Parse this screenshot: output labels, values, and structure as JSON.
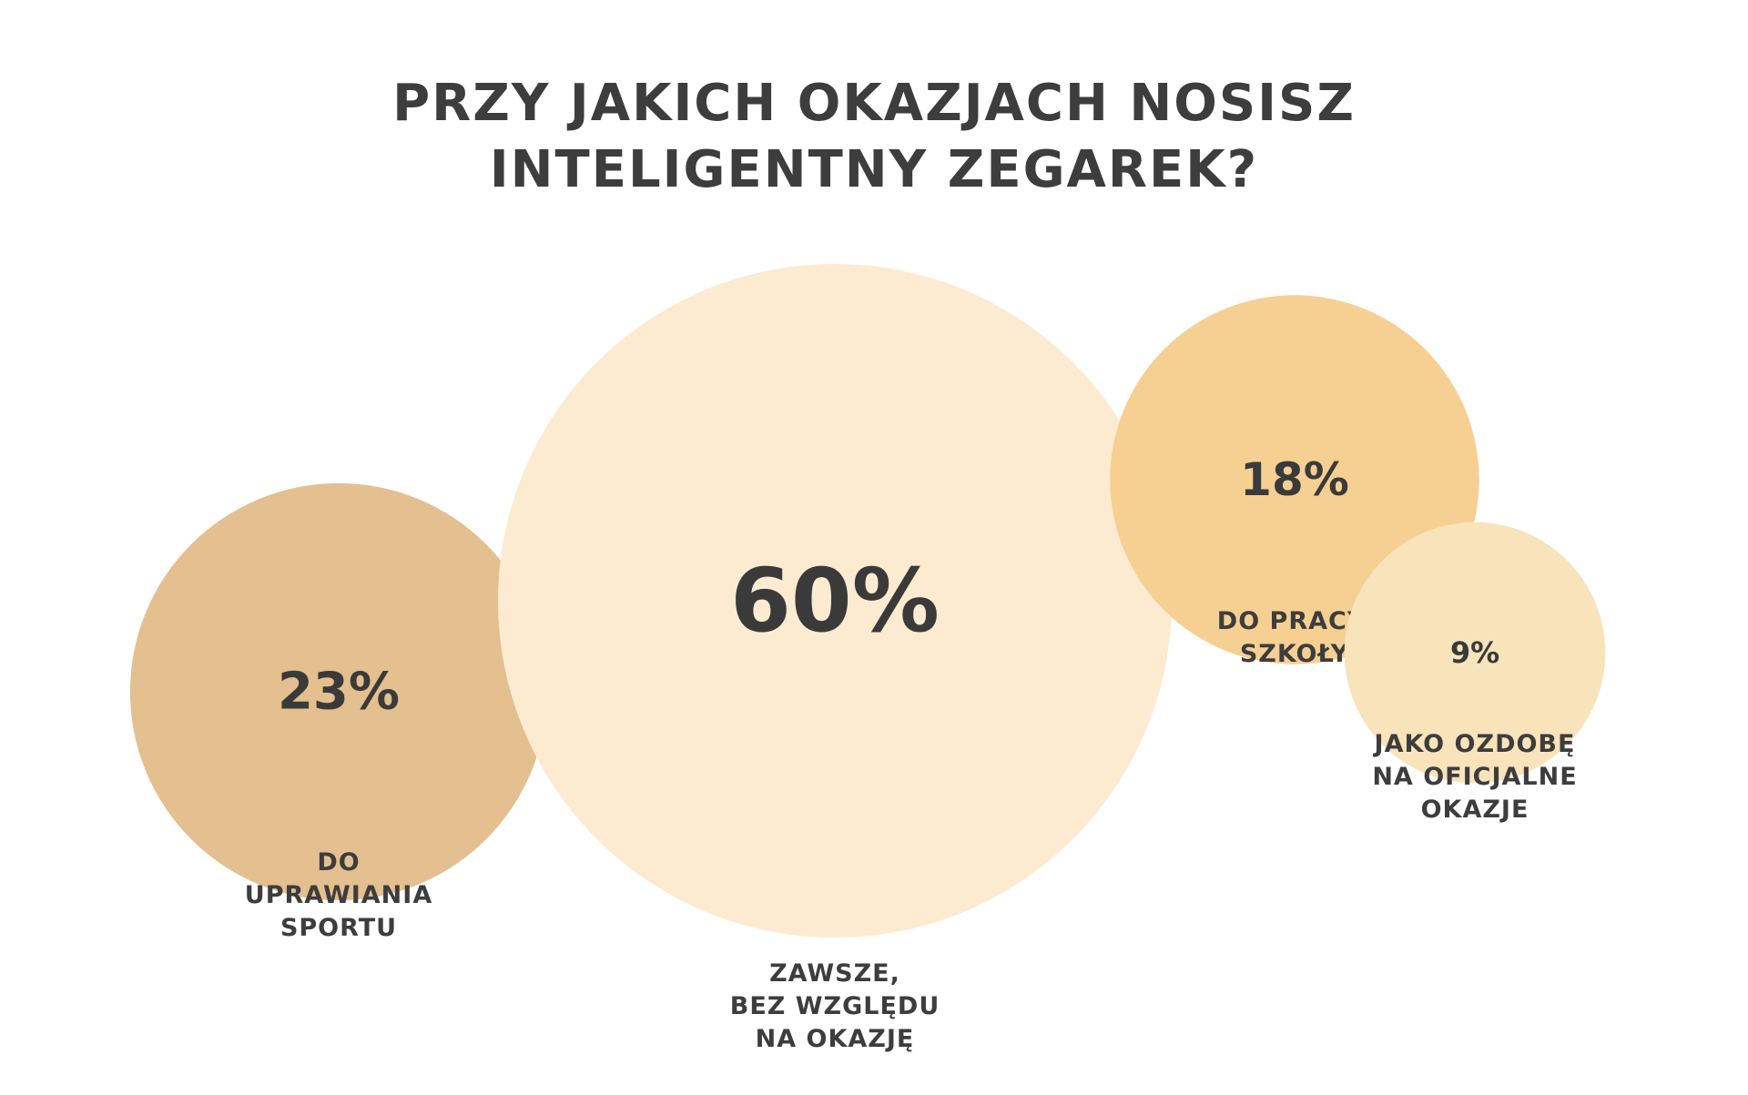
{
  "chart_data": {
    "type": "bubble",
    "title_lines": [
      "PRZY JAKICH OKAZJACH NOSISZ",
      "INTELIGENTNY ZEGAREK?"
    ],
    "items": [
      {
        "value": 23,
        "value_label": "23%",
        "label_lines": [
          "DO",
          "UPRAWIANIA",
          "SPORTU"
        ],
        "color": "#e4bf8f"
      },
      {
        "value": 60,
        "value_label": "60%",
        "label_lines": [
          "ZAWSZE,",
          "BEZ WZGLĘDU",
          "NA OKAZJĘ"
        ],
        "color": "#fcebd0"
      },
      {
        "value": 18,
        "value_label": "18%",
        "label_lines": [
          "DO PRACY,",
          "SZKOŁY"
        ],
        "color": "#f6cf93"
      },
      {
        "value": 9,
        "value_label": "9%",
        "label_lines": [
          "JAKO OZDOBĘ",
          "NA OFICJALNE",
          "OKAZJE"
        ],
        "color": "#f8e3bb"
      }
    ]
  }
}
